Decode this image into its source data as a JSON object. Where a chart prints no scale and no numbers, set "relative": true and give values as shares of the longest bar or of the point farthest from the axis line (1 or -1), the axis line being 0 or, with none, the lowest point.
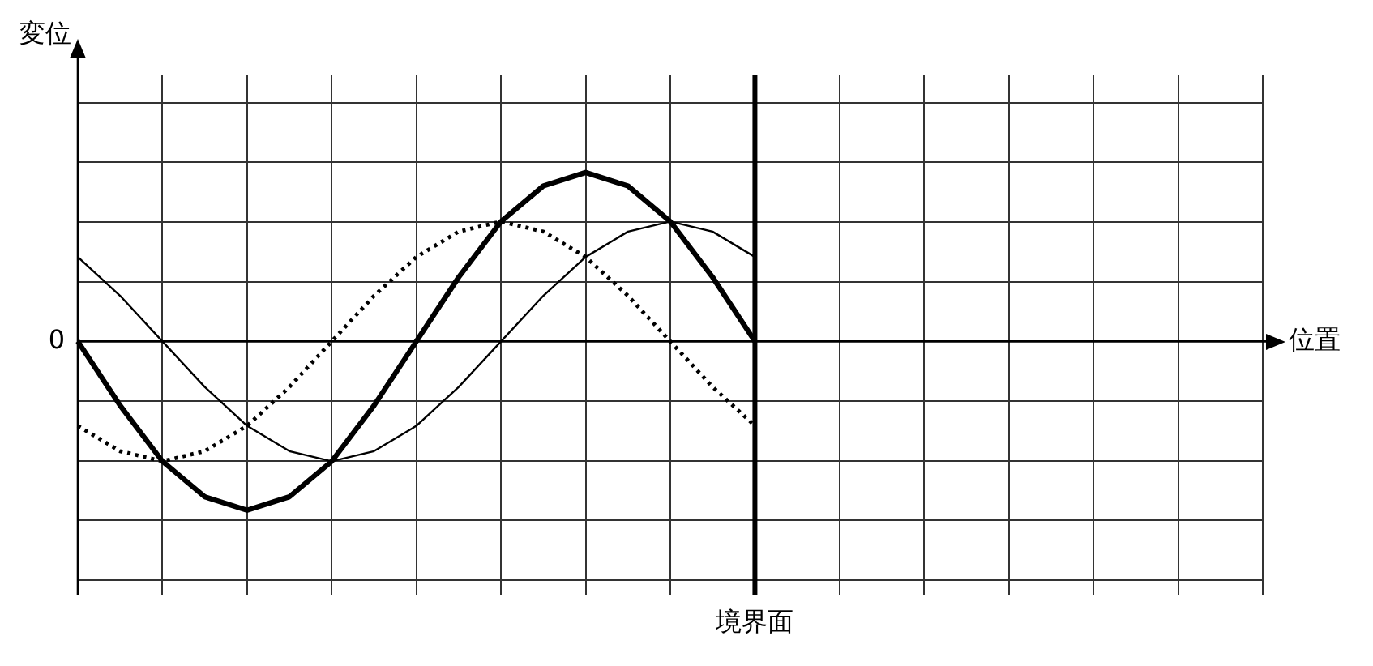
{
  "chart_data": {
    "type": "line",
    "xlabel": "位置",
    "relative": true,
    "grid": true,
    "marker": "none",
    "categories": [
      null,
      null,
      null,
      null,
      null,
      null,
      null,
      null,
      null,
      null,
      null,
      null,
      null,
      null,
      null,
      null,
      null,
      null,
      null,
      null,
      null,
      null,
      null,
      null,
      null,
      null,
      null,
      null,
      null
    ],
    "series": [
      {
        "color": "#000000",
        "line_style": "solid",
        "values": [
          0,
          -0.38,
          -0.71,
          -0.92,
          -1,
          -0.92,
          -0.71,
          -0.38,
          0,
          0.38,
          0.71,
          0.92,
          1,
          0.92,
          0.71,
          0.38,
          0,
          null,
          null,
          null,
          null,
          null,
          null,
          null,
          null,
          null,
          null,
          null,
          null
        ]
      },
      {
        "color": "#000000",
        "line_style": "solid",
        "values": [
          0.5,
          0.27,
          0,
          -0.27,
          -0.5,
          -0.65,
          -0.71,
          -0.65,
          -0.5,
          -0.27,
          0,
          0.27,
          0.5,
          0.65,
          0.71,
          0.65,
          0.5,
          null,
          null,
          null,
          null,
          null,
          null,
          null,
          null,
          null,
          null,
          null,
          null
        ]
      },
      {
        "color": "#000000",
        "line_style": "dotted",
        "values": [
          -0.5,
          -0.65,
          -0.71,
          -0.65,
          -0.5,
          -0.27,
          0,
          0.27,
          0.5,
          0.65,
          0.71,
          0.65,
          0.5,
          0.27,
          0,
          -0.27,
          -0.5,
          null,
          null,
          null,
          null,
          null,
          null,
          null,
          null,
          null,
          null,
          null,
          null
        ]
      }
    ],
    "annotations": [
      "変位",
      "0",
      "境界面"
    ]
  }
}
